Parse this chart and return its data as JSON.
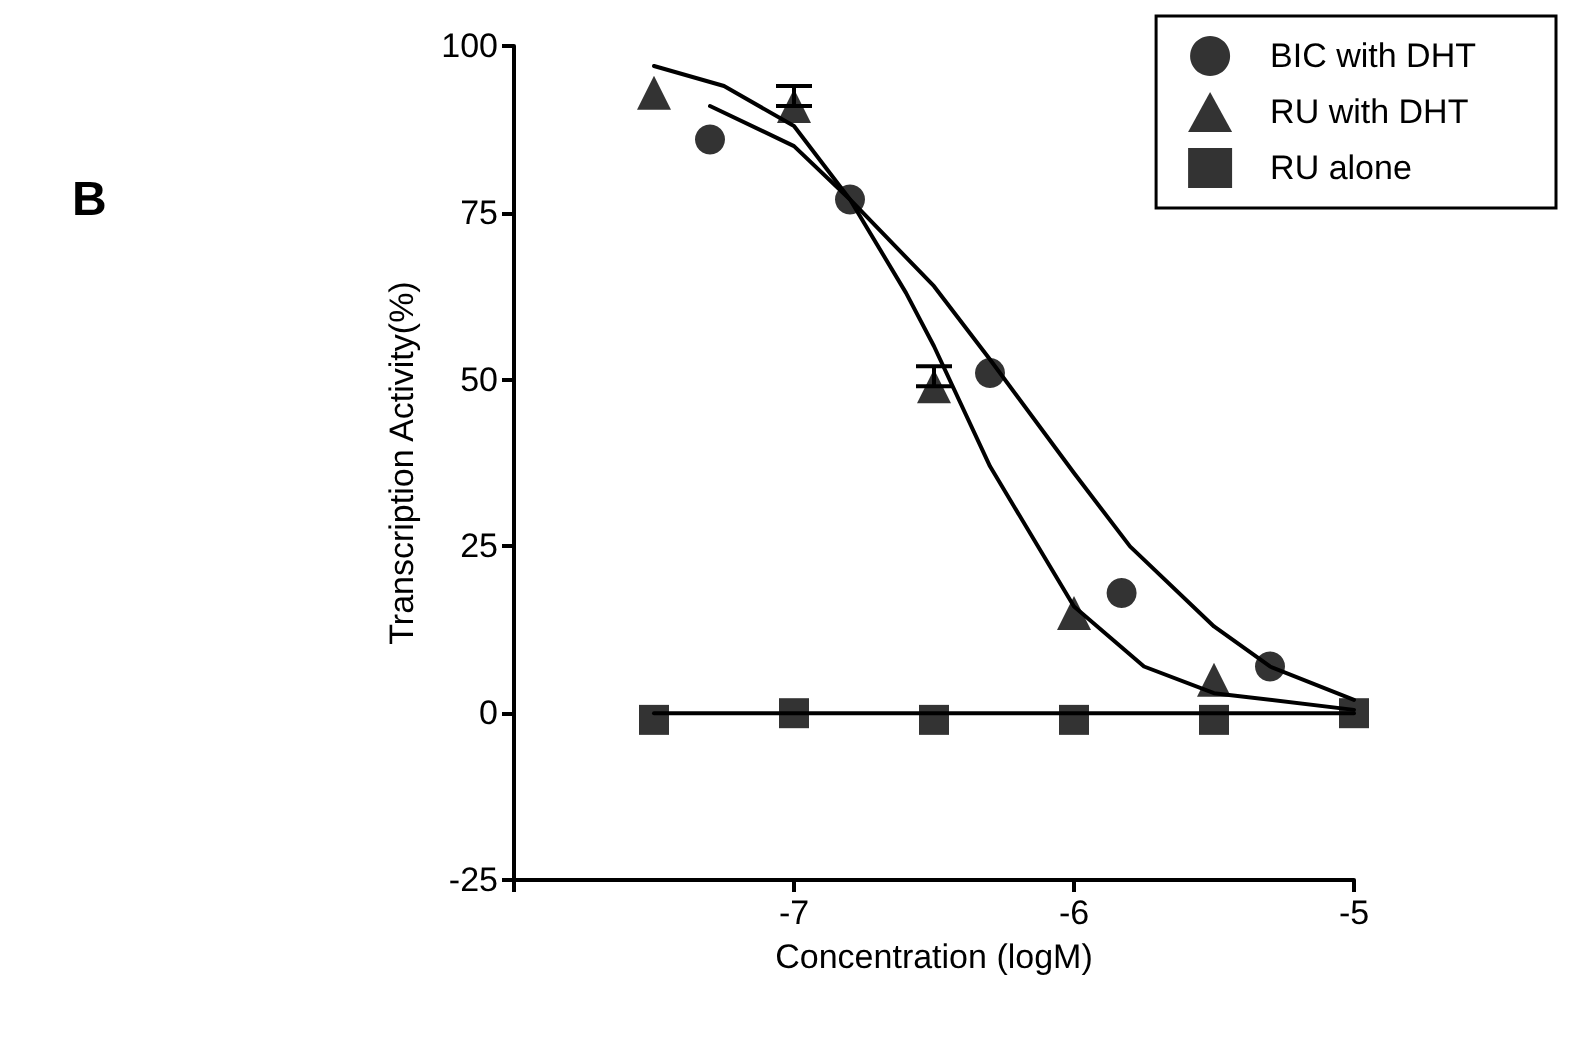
{
  "chart_data": {
    "type": "scatter",
    "xlabel": "Concentration (logM)",
    "ylabel": "Transcription Activity(%)",
    "annotations": [
      "B"
    ],
    "xlim": [
      -8,
      -5
    ],
    "xticks": [
      {
        "value": -8,
        "label": null
      },
      -7,
      -6,
      -5
    ],
    "ylim": [
      -25,
      100
    ],
    "yticks": [
      -25,
      0,
      25,
      50,
      75,
      100
    ],
    "grid": false,
    "legend": "top right",
    "series": [
      {
        "name": "BIC with DHT",
        "color": "#000000",
        "marker": "circle",
        "x": [
          -7.3,
          -6.8,
          -6.3,
          -5.83,
          -5.3
        ],
        "values": [
          86,
          77,
          51,
          18,
          7
        ]
      },
      {
        "name": "RU with DHT",
        "color": "#000000",
        "marker": "triangle",
        "x": [
          -7.5,
          -7.0,
          -6.5,
          -6.0,
          -5.5
        ],
        "values": [
          93,
          91,
          49,
          15,
          5
        ],
        "errors": [
          null,
          [
            91,
            94
          ],
          [
            49,
            52
          ],
          null,
          null
        ]
      },
      {
        "name": "RU alone",
        "color": "#000000",
        "marker": "square",
        "x": [
          -7.5,
          -7.0,
          -6.5,
          -6.0,
          -5.5,
          -5.0
        ],
        "values": [
          -1,
          0,
          -1,
          -1,
          -1,
          0
        ]
      },
      {
        "type": "line",
        "color": "#000000",
        "marker": "none",
        "x": [
          -7.3,
          -7.0,
          -6.8,
          -6.5,
          -6.3,
          -6.0,
          -5.8,
          -5.5,
          -5.3,
          -5.0
        ],
        "values": [
          91,
          85,
          77,
          64,
          53,
          36,
          25,
          13,
          7,
          2
        ]
      },
      {
        "type": "line",
        "color": "#000000",
        "marker": "none",
        "x": [
          -7.5,
          -7.25,
          -7.0,
          -6.8,
          -6.6,
          -6.5,
          -6.3,
          -6.0,
          -5.75,
          -5.5,
          -5.0
        ],
        "values": [
          97,
          94,
          88,
          77,
          63,
          55,
          37,
          16,
          7,
          3,
          0.5
        ]
      },
      {
        "type": "line",
        "color": "#000000",
        "marker": "none",
        "x": [
          -7.5,
          -5.0
        ],
        "values": [
          0,
          0
        ]
      }
    ]
  }
}
